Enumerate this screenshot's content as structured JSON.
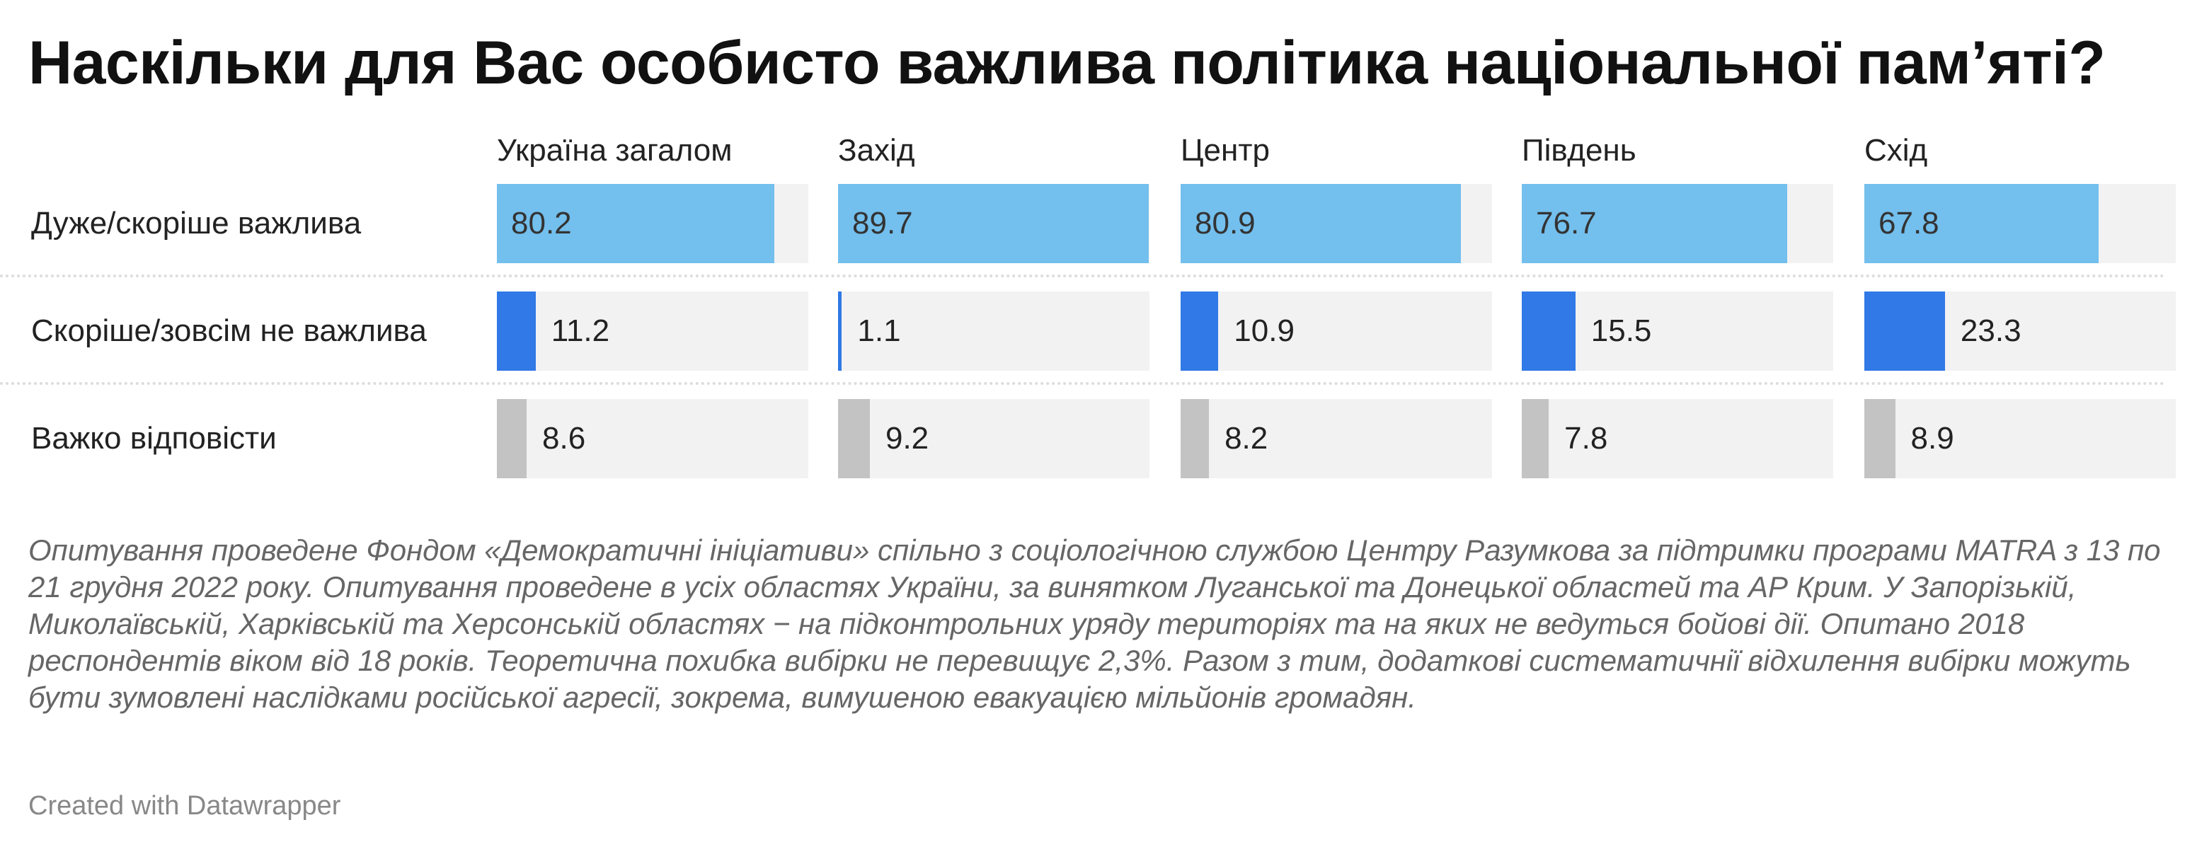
{
  "title": "Наскільки для Вас особисто важлива політика національної пам’яті?",
  "colors": {
    "row0": "#73bfed",
    "row1": "#3079e6",
    "row2": "#c3c3c3",
    "track": "#f2f2f2"
  },
  "chart_data": {
    "type": "bar",
    "title": "Наскільки для Вас особисто важлива політика національної пам’яті?",
    "columns": [
      "Україна загалом",
      "Захід",
      "Центр",
      "Південь",
      "Схід"
    ],
    "rows": [
      "Дуже/скоріше важлива",
      "Скоріше/зовсім не важлива",
      "Важко відповісти"
    ],
    "series": [
      {
        "name": "Україна загалом",
        "values": [
          80.2,
          11.2,
          8.6
        ]
      },
      {
        "name": "Захід",
        "values": [
          89.7,
          1.1,
          9.2
        ]
      },
      {
        "name": "Центр",
        "values": [
          80.9,
          10.9,
          8.2
        ]
      },
      {
        "name": "Південь",
        "values": [
          76.7,
          15.5,
          7.8
        ]
      },
      {
        "name": "Схід",
        "values": [
          67.8,
          23.3,
          8.9
        ]
      }
    ],
    "xlim": [
      0,
      90
    ],
    "unit": "%"
  },
  "notes": "Опитування проведене Фондом «Демократичні ініціативи» спільно з соціологічною службою Центру Разумкова за підтримки програми MATRA з 13 по 21 грудня 2022 року. Опитування проведене в усіх областях України, за винятком Луганської та Донецької областей та АР Крим. У Запорізькій, Миколаївській, Харківській та Херсонській областях − на підконтрольних уряду територіях та на яких не ведуться бойові дії. Опитано 2018 респондентів віком від 18 років. Теоретична похибка вибірки не перевищує 2,3%. Разом з тим, додаткові систематичнії відхилення вибірки можуть бути зумовлені наслідками російської агресії, зокрема, вимушеною евакуацією мільйонів громадян.",
  "credit": "Created with Datawrapper"
}
